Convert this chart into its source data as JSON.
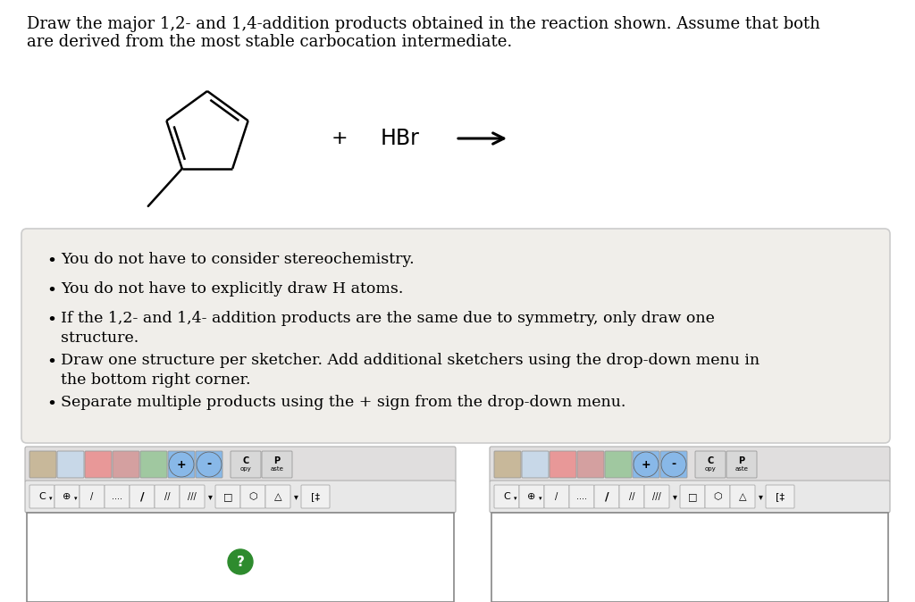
{
  "bg_color": "#ffffff",
  "title_line1": "Draw the major 1,2- and 1,4-addition products obtained in the reaction shown. Assume that both",
  "title_line2": "are derived from the most stable carbocation intermediate.",
  "title_fontsize": 13.0,
  "bullet_fontsize": 12.5,
  "bullets": [
    "You do not have to consider stereochemistry.",
    "You do not have to explicitly draw H atoms.",
    "If the 1,2- and 1,4- addition products are the same due to symmetry, only draw one\nstructure.",
    "Draw one structure per sketcher. Add additional sketchers using the drop-down menu in\nthe bottom right corner.",
    "Separate multiple products using the + sign from the drop-down menu."
  ],
  "bullet_box_color": "#f0eeea",
  "bullet_box_border": "#cccccc"
}
